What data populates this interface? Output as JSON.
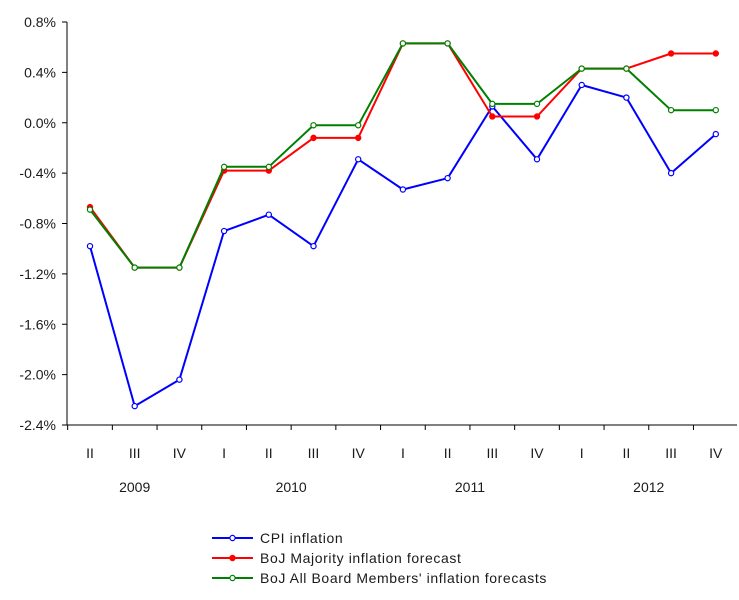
{
  "chart_data": {
    "type": "line",
    "title": "",
    "xlabel": "",
    "ylabel": "",
    "ylim": [
      -2.4,
      0.8
    ],
    "yticks": [
      0.8,
      0.4,
      0.0,
      -0.4,
      -0.8,
      -1.2,
      -1.6,
      -2.0,
      -2.4
    ],
    "yticklabels": [
      "0.8%",
      "0.4%",
      "0.0%",
      "-0.4%",
      "-0.8%",
      "-1.2%",
      "-1.6%",
      "-2.0%",
      "-2.4%"
    ],
    "categories": [
      "II",
      "III",
      "IV",
      "I",
      "II",
      "III",
      "IV",
      "I",
      "II",
      "III",
      "IV",
      "I",
      "II",
      "III",
      "IV"
    ],
    "years": [
      {
        "label": "2009",
        "start": 0,
        "end": 2
      },
      {
        "label": "2010",
        "start": 3,
        "end": 6
      },
      {
        "label": "2011",
        "start": 7,
        "end": 10
      },
      {
        "label": "2012",
        "start": 11,
        "end": 14
      }
    ],
    "grid": false,
    "legend_position": "bottom",
    "series": [
      {
        "name": "CPI inflation",
        "color": "#0000ff",
        "marker": "open-circle",
        "values": [
          -0.98,
          -2.25,
          -2.04,
          -0.86,
          -0.73,
          -0.98,
          -0.29,
          -0.53,
          -0.44,
          0.13,
          -0.29,
          0.3,
          0.2,
          -0.4,
          -0.09
        ]
      },
      {
        "name": "BoJ Majority inflation forecast",
        "color": "#ff0000",
        "marker": "filled-circle",
        "values": [
          -0.67,
          -1.15,
          -1.15,
          -0.38,
          -0.38,
          -0.12,
          -0.12,
          0.63,
          0.63,
          0.05,
          0.05,
          0.43,
          0.43,
          0.55,
          0.55
        ]
      },
      {
        "name": "BoJ All Board Members' inflation forecasts",
        "color": "#008000",
        "marker": "open-circle",
        "values": [
          -0.69,
          -1.15,
          -1.15,
          -0.35,
          -0.35,
          -0.02,
          -0.02,
          0.63,
          0.63,
          0.15,
          0.15,
          0.43,
          0.43,
          0.1,
          0.1
        ]
      }
    ]
  }
}
